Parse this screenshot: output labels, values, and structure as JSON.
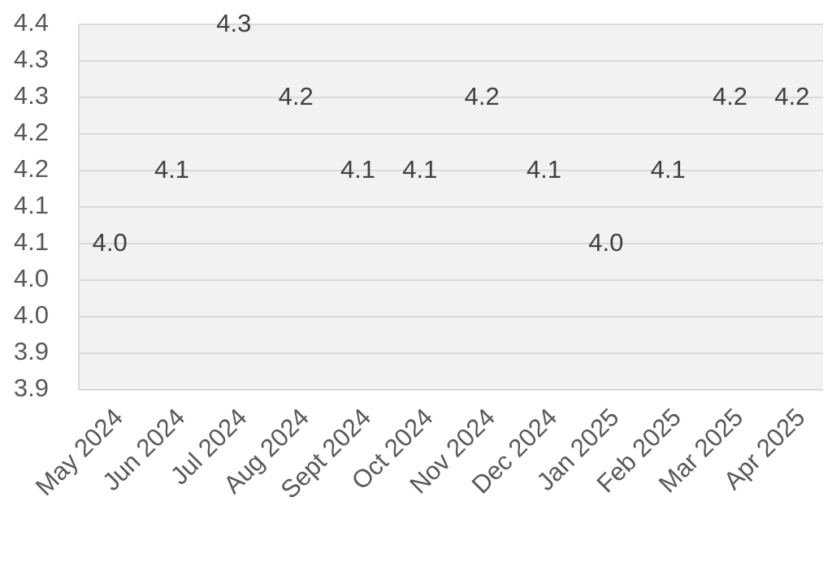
{
  "chart_data": {
    "type": "line",
    "categories": [
      "May 2024",
      "Jun 2024",
      "Jul 2024",
      "Aug 2024",
      "Sept 2024",
      "Oct 2024",
      "Nov 2024",
      "Dec 2024",
      "Jan 2025",
      "Feb 2025",
      "Mar 2025",
      "Apr 2025"
    ],
    "series": [
      {
        "color": "#12bbea",
        "values": [
          4.0,
          4.1,
          4.3,
          4.2,
          4.1,
          4.1,
          4.2,
          4.1,
          4.0,
          4.1,
          4.2,
          4.2
        ],
        "value_labels": [
          "4.0",
          "4.1",
          "4.3",
          "4.2",
          "4.1",
          "4.1",
          "4.2",
          "4.1",
          "4.0",
          "4.1",
          "4.2",
          "4.2"
        ]
      }
    ],
    "ylim": [
      3.85,
      4.35
    ],
    "yticks": [
      {
        "value": 3.85,
        "label": "3.9"
      },
      {
        "value": 3.9,
        "label": "3.9"
      },
      {
        "value": 3.95,
        "label": "4.0"
      },
      {
        "value": 4.0,
        "label": "4.0"
      },
      {
        "value": 4.05,
        "label": "4.1"
      },
      {
        "value": 4.1,
        "label": "4.1"
      },
      {
        "value": 4.15,
        "label": "4.2"
      },
      {
        "value": 4.2,
        "label": "4.2"
      },
      {
        "value": 4.25,
        "label": "4.3"
      },
      {
        "value": 4.3,
        "label": "4.3"
      },
      {
        "value": 4.35,
        "label": "4.4"
      }
    ],
    "grid": true
  }
}
